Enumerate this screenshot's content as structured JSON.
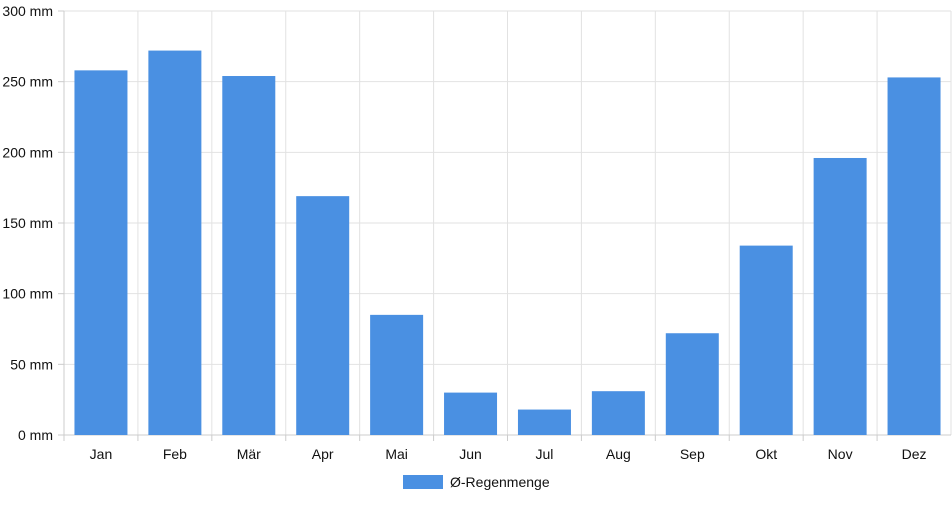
{
  "chart_data": {
    "type": "bar",
    "categories": [
      "Jan",
      "Feb",
      "Mär",
      "Apr",
      "Mai",
      "Jun",
      "Jul",
      "Aug",
      "Sep",
      "Okt",
      "Nov",
      "Dez"
    ],
    "series": [
      {
        "name": "Ø-Regenmenge",
        "values": [
          258,
          272,
          254,
          169,
          85,
          30,
          18,
          31,
          72,
          134,
          196,
          253
        ],
        "color": "#4a90e2"
      }
    ],
    "y_ticks": [
      "0 mm",
      "50 mm",
      "100 mm",
      "150 mm",
      "200 mm",
      "250 mm",
      "300 mm"
    ],
    "ylim": [
      0,
      300
    ],
    "grid": true,
    "legend_position": "bottom-center"
  }
}
